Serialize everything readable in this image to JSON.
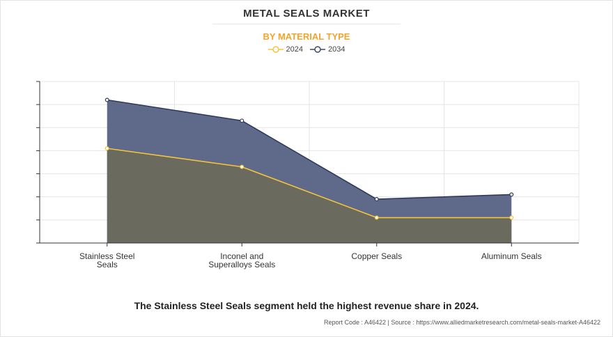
{
  "header": {
    "title": "METAL SEALS MARKET",
    "subtitle": "BY MATERIAL TYPE"
  },
  "legend": [
    {
      "label": "2024",
      "color": "#f5c43b"
    },
    {
      "label": "2034",
      "color": "#3f4a6e"
    }
  ],
  "chart_data": {
    "type": "area",
    "categories": [
      "Stainless Steel\nSeals",
      "Inconel and\nSuperalloys Seals",
      "Copper Seals",
      "Aluminum Seals"
    ],
    "series": [
      {
        "name": "2034",
        "values": [
          6.2,
          5.3,
          1.9,
          2.1
        ],
        "line_color": "#2e3a5c",
        "fill_color": "#5f6a8a"
      },
      {
        "name": "2024",
        "values": [
          4.1,
          3.3,
          1.1,
          1.1
        ],
        "line_color": "#f5c43b",
        "fill_color": "#6a6a5e"
      }
    ],
    "ylim": [
      0,
      7
    ],
    "yticks": 7,
    "grid": true,
    "title": "METAL SEALS MARKET",
    "xlabel": "",
    "ylabel": ""
  },
  "footer": {
    "caption": "The Stainless Steel Seals segment held the highest revenue share in 2024.",
    "source": "Report Code : A46422  |  Source : https://www.alliedmarketresearch.com/metal-seals-market-A46422"
  }
}
